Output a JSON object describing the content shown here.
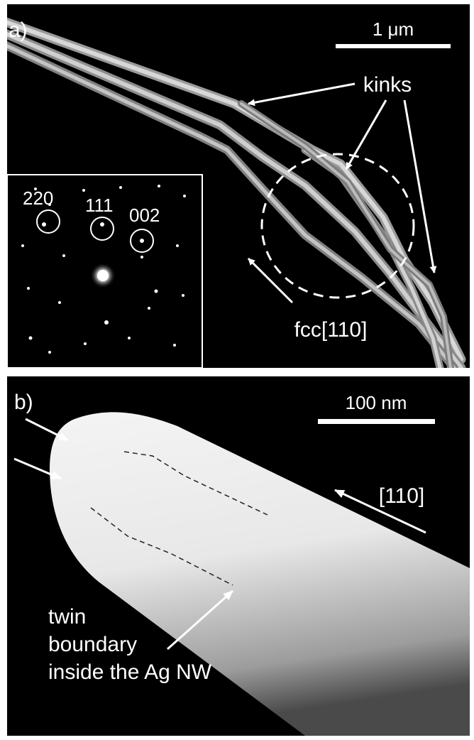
{
  "panel_a": {
    "label": "a)",
    "scale_bar": "1 μm",
    "annotation_kinks": "kinks",
    "annotation_direction": "fcc[110]",
    "inset": {
      "spots": [
        "220",
        "111",
        "002"
      ]
    }
  },
  "panel_b": {
    "label": "b)",
    "scale_bar": "100 nm",
    "annotation_direction": "[110]",
    "annotation_twin": [
      "twin",
      "boundary",
      "inside the Ag NW"
    ]
  }
}
